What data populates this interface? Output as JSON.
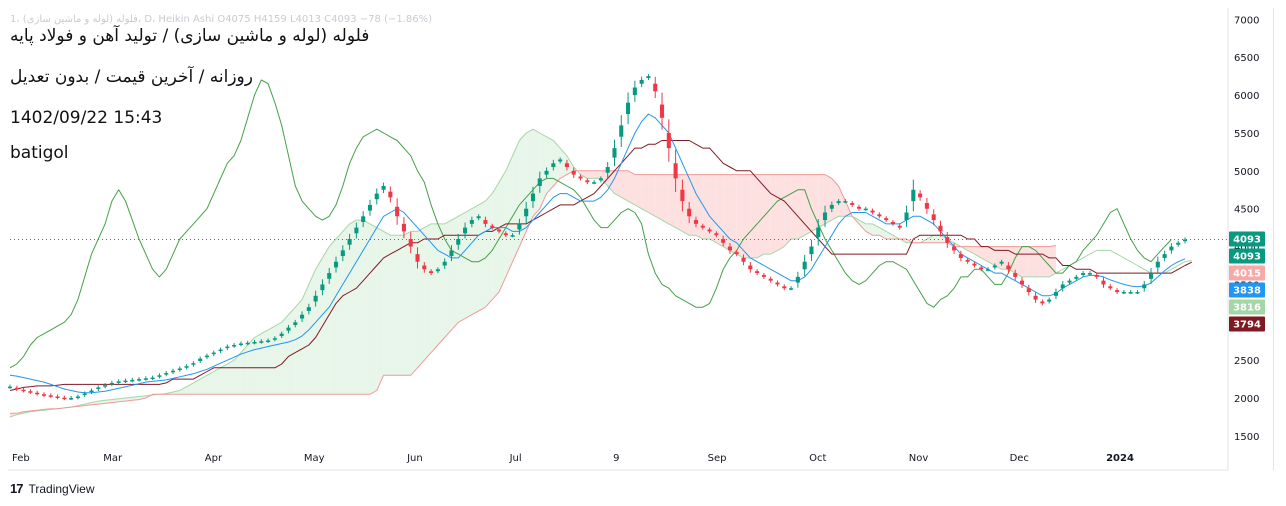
{
  "header": {
    "faint_info": "1، فلوله (لوله و ماشین سازی)، D، Heikin Ashi  O4075  H4159  L4013  C4093  −78 (−1.86%)",
    "symbol_name": "فلوله (لوله و ماشین سازی) / تولید آهن و فولاد پایه",
    "timeframe": "روزانه / آخرین قیمت / بدون تعدیل",
    "datetime": "1402/09/22 15:43",
    "author": "batigol"
  },
  "footer": {
    "logo": "17",
    "brand": "TradingView"
  },
  "chart_data": {
    "type": "candlestick",
    "style": "Heikin Ashi",
    "timeframe": "Daily",
    "y_ticks": [
      1500,
      2000,
      2500,
      3000,
      3500,
      4000,
      4500,
      5000,
      5500,
      6000,
      6500,
      7000
    ],
    "ylim": [
      1050,
      7150
    ],
    "x_labels": [
      "Feb",
      "Mar",
      "Apr",
      "May",
      "Jun",
      "Jul",
      "9",
      "Sep",
      "Oct",
      "Nov",
      "Dec",
      "2024"
    ],
    "last_close": 4093,
    "price_badges": [
      {
        "value": "4093",
        "color": "#089981",
        "meaning": "close"
      },
      {
        "value": "4093",
        "color": "#089981",
        "meaning": "last price"
      },
      {
        "value": "4015",
        "color": "#f7a9a7",
        "meaning": "senkou span B"
      },
      {
        "value": "3838",
        "color": "#2196f3",
        "meaning": "tenkan-sen"
      },
      {
        "value": "3816",
        "color": "#a5d6a7",
        "meaning": "senkou span A"
      },
      {
        "value": "3794",
        "color": "#801922",
        "meaning": "kijun-sen"
      }
    ],
    "colors": {
      "up": "#089981",
      "down": "#f23645",
      "tenkan": "#2196f3",
      "kijun": "#801922",
      "chikou": "#43a047",
      "span_a": "#a5d6a7",
      "span_b": "#ef9a9a",
      "cloud_bull": "#e8f5e9",
      "cloud_bear": "#fde0e0"
    },
    "closes": [
      2150,
      2120,
      2100,
      2080,
      2060,
      2040,
      2030,
      2010,
      2000,
      2000,
      2020,
      2060,
      2100,
      2140,
      2170,
      2200,
      2220,
      2230,
      2240,
      2250,
      2260,
      2270,
      2300,
      2330,
      2360,
      2390,
      2420,
      2460,
      2520,
      2560,
      2600,
      2640,
      2680,
      2700,
      2720,
      2730,
      2740,
      2750,
      2760,
      2790,
      2850,
      2930,
      3000,
      3100,
      3200,
      3350,
      3500,
      3650,
      3800,
      3950,
      4100,
      4250,
      4400,
      4550,
      4700,
      4800,
      4650,
      4400,
      4200,
      4000,
      3800,
      3700,
      3650,
      3700,
      3800,
      3950,
      4100,
      4250,
      4350,
      4400,
      4300,
      4250,
      4200,
      4150,
      4150,
      4300,
      4500,
      4700,
      4900,
      5000,
      5100,
      5150,
      5050,
      4950,
      4900,
      4850,
      4850,
      4900,
      5050,
      5300,
      5600,
      5900,
      6100,
      6200,
      6250,
      6050,
      5700,
      5300,
      4900,
      4600,
      4400,
      4300,
      4250,
      4200,
      4150,
      4050,
      3950,
      3900,
      3800,
      3700,
      3650,
      3600,
      3550,
      3500,
      3450,
      3450,
      3600,
      3800,
      4000,
      4250,
      4450,
      4550,
      4600,
      4600,
      4550,
      4500,
      4500,
      4450,
      4400,
      4350,
      4300,
      4250,
      4450,
      4750,
      4650,
      4500,
      4350,
      4200,
      4050,
      3950,
      3850,
      3800,
      3750,
      3700,
      3700,
      3750,
      3800,
      3700,
      3600,
      3500,
      3400,
      3300,
      3250,
      3300,
      3400,
      3500,
      3550,
      3600,
      3650,
      3650,
      3600,
      3500,
      3450,
      3400,
      3400,
      3400,
      3400,
      3500,
      3650,
      3800,
      3900,
      4000,
      4050,
      4093
    ],
    "tenkan": [
      2300,
      2290,
      2270,
      2250,
      2230,
      2210,
      2180,
      2150,
      2120,
      2100,
      2080,
      2070,
      2070,
      2080,
      2090,
      2110,
      2130,
      2150,
      2170,
      2190,
      2210,
      2220,
      2230,
      2240,
      2260,
      2280,
      2300,
      2320,
      2350,
      2380,
      2420,
      2460,
      2500,
      2540,
      2580,
      2610,
      2640,
      2660,
      2680,
      2700,
      2720,
      2740,
      2770,
      2820,
      2900,
      3000,
      3100,
      3200,
      3350,
      3500,
      3650,
      3800,
      3950,
      4100,
      4250,
      4400,
      4450,
      4500,
      4450,
      4350,
      4250,
      4150,
      4050,
      3950,
      3900,
      3850,
      3850,
      3950,
      4050,
      4150,
      4200,
      4250,
      4250,
      4250,
      4200,
      4200,
      4250,
      4350,
      4450,
      4550,
      4650,
      4700,
      4700,
      4650,
      4600,
      4600,
      4600,
      4650,
      4750,
      4900,
      5100,
      5300,
      5500,
      5650,
      5750,
      5700,
      5600,
      5500,
      5300,
      5100,
      4900,
      4700,
      4550,
      4400,
      4300,
      4200,
      4100,
      4050,
      3950,
      3850,
      3800,
      3750,
      3700,
      3650,
      3600,
      3550,
      3550,
      3600,
      3700,
      3850,
      4000,
      4150,
      4300,
      4400,
      4450,
      4450,
      4450,
      4400,
      4350,
      4300,
      4300,
      4300,
      4350,
      4400,
      4400,
      4350,
      4300,
      4200,
      4100,
      4000,
      3900,
      3850,
      3800,
      3750,
      3700,
      3650,
      3650,
      3600,
      3550,
      3500,
      3450,
      3400,
      3350,
      3350,
      3380,
      3450,
      3500,
      3550,
      3600,
      3620,
      3620,
      3600,
      3560,
      3530,
      3500,
      3480,
      3470,
      3480,
      3520,
      3600,
      3680,
      3750,
      3800,
      3838
    ],
    "kijun": [
      2100,
      2120,
      2140,
      2150,
      2160,
      2160,
      2160,
      2170,
      2180,
      2180,
      2180,
      2180,
      2180,
      2180,
      2180,
      2180,
      2180,
      2180,
      2180,
      2180,
      2180,
      2180,
      2180,
      2200,
      2250,
      2250,
      2250,
      2250,
      2300,
      2350,
      2400,
      2400,
      2400,
      2400,
      2400,
      2400,
      2400,
      2400,
      2400,
      2400,
      2450,
      2550,
      2600,
      2650,
      2700,
      2800,
      2950,
      3100,
      3250,
      3350,
      3400,
      3450,
      3550,
      3650,
      3750,
      3850,
      3900,
      3950,
      4000,
      4050,
      4050,
      4100,
      4100,
      4100,
      4150,
      4150,
      4150,
      4150,
      4150,
      4150,
      4200,
      4200,
      4250,
      4300,
      4300,
      4300,
      4300,
      4350,
      4400,
      4450,
      4500,
      4550,
      4550,
      4550,
      4600,
      4650,
      4700,
      4800,
      4900,
      5000,
      5100,
      5200,
      5300,
      5300,
      5350,
      5350,
      5400,
      5400,
      5400,
      5400,
      5400,
      5350,
      5300,
      5300,
      5200,
      5100,
      5050,
      5000,
      5000,
      5000,
      4900,
      4800,
      4700,
      4650,
      4600,
      4500,
      4400,
      4300,
      4200,
      4100,
      4000,
      3900,
      3900,
      3900,
      3900,
      3900,
      3900,
      3900,
      3900,
      3900,
      3900,
      3900,
      3900,
      4100,
      4150,
      4150,
      4150,
      4150,
      4150,
      4150,
      4150,
      4100,
      4100,
      4000,
      4000,
      3950,
      3950,
      3950,
      3900,
      3900,
      3900,
      3900,
      3900,
      3850,
      3850,
      3750,
      3750,
      3700,
      3700,
      3700,
      3650,
      3650,
      3650,
      3650,
      3650,
      3650,
      3650,
      3650,
      3650,
      3650,
      3650,
      3650,
      3700,
      3750,
      3794
    ],
    "chikou": [
      2400,
      2450,
      2550,
      2700,
      2800,
      2850,
      2900,
      2950,
      3000,
      3100,
      3300,
      3600,
      3900,
      4100,
      4300,
      4600,
      4750,
      4600,
      4350,
      4100,
      3900,
      3700,
      3600,
      3700,
      3900,
      4100,
      4200,
      4300,
      4400,
      4500,
      4700,
      4900,
      5100,
      5200,
      5400,
      5700,
      6000,
      6200,
      6150,
      5900,
      5600,
      5200,
      4800,
      4600,
      4500,
      4400,
      4350,
      4400,
      4550,
      4800,
      5100,
      5300,
      5450,
      5500,
      5550,
      5500,
      5450,
      5400,
      5300,
      5200,
      5000,
      4850,
      4550,
      4300,
      4100,
      3950,
      3900,
      3850,
      3800,
      3800,
      3850,
      3950,
      4100,
      4250,
      4400,
      4550,
      4650,
      4750,
      4850,
      4900,
      4900,
      4850,
      4800,
      4750,
      4650,
      4500,
      4350,
      4250,
      4250,
      4350,
      4450,
      4500,
      4450,
      4300,
      3900,
      3650,
      3500,
      3450,
      3350,
      3300,
      3250,
      3200,
      3200,
      3250,
      3450,
      3700,
      3850,
      3950,
      4100,
      4200,
      4300,
      4400,
      4500,
      4600,
      4650,
      4700,
      4750,
      4750,
      4500,
      4300,
      4100,
      3950,
      3800,
      3650,
      3550,
      3500,
      3550,
      3650,
      3750,
      3800,
      3800,
      3750,
      3700,
      3550,
      3400,
      3250,
      3200,
      3300,
      3350,
      3450,
      3600,
      3600,
      3700,
      3700,
      3600,
      3500,
      3500,
      3650,
      3850,
      4000,
      4000,
      3950,
      3850,
      3750,
      3650,
      3650,
      3750,
      3800,
      3950,
      4050,
      4150,
      4300,
      4450,
      4500,
      4300,
      4100,
      3950,
      3850,
      3800,
      3900,
      4000,
      4093
    ],
    "span_a": [
      1750,
      1780,
      1800,
      1820,
      1830,
      1840,
      1850,
      1860,
      1870,
      1880,
      1900,
      1920,
      1940,
      1960,
      1970,
      1980,
      1990,
      2000,
      2010,
      2020,
      2030,
      2040,
      2050,
      2060,
      2080,
      2100,
      2150,
      2200,
      2250,
      2300,
      2350,
      2400,
      2450,
      2500,
      2600,
      2700,
      2800,
      2850,
      2900,
      2950,
      3000,
      3100,
      3200,
      3300,
      3500,
      3700,
      3850,
      4000,
      4100,
      4200,
      4300,
      4350,
      4350,
      4300,
      4250,
      4200,
      4150,
      4150,
      4150,
      4200,
      4200,
      4250,
      4300,
      4300,
      4300,
      4350,
      4400,
      4450,
      4500,
      4550,
      4600,
      4700,
      4850,
      5000,
      5200,
      5400,
      5500,
      5550,
      5500,
      5450,
      5400,
      5300,
      5200,
      5050,
      4950,
      4900,
      4900,
      4900,
      4800,
      4700,
      4650,
      4600,
      4550,
      4500,
      4450,
      4400,
      4350,
      4300,
      4250,
      4200,
      4150,
      4150,
      4100,
      4100,
      4050,
      4000,
      3950,
      3900,
      3850,
      3850,
      3850,
      3900,
      3900,
      3950,
      4000,
      4100,
      4100,
      4150,
      4200,
      4250,
      4300,
      4350,
      4400,
      4400,
      4400,
      4350,
      4300,
      4300,
      4250,
      4200,
      4150,
      4100,
      4050,
      4050,
      4050,
      4100,
      4150,
      4150,
      4100,
      4050,
      4000,
      3950,
      3900,
      3850,
      3800,
      3750,
      3700,
      3700,
      3650,
      3600,
      3600,
      3600,
      3600,
      3600,
      3650,
      3700,
      3750,
      3800,
      3850,
      3900,
      3950,
      3950,
      3950,
      3900,
      3850,
      3800,
      3750,
      3700,
      3650,
      3650,
      3650,
      3700,
      3750,
      3800,
      3816
    ],
    "span_b": [
      1800,
      1800,
      1820,
      1830,
      1840,
      1850,
      1860,
      1860,
      1870,
      1880,
      1890,
      1900,
      1910,
      1920,
      1930,
      1940,
      1950,
      1960,
      1970,
      1980,
      2000,
      2050,
      2050,
      2050,
      2050,
      2050,
      2050,
      2050,
      2050,
      2050,
      2050,
      2050,
      2050,
      2050,
      2050,
      2050,
      2050,
      2050,
      2050,
      2050,
      2050,
      2050,
      2050,
      2050,
      2050,
      2050,
      2050,
      2050,
      2050,
      2050,
      2050,
      2050,
      2050,
      2050,
      2100,
      2300,
      2300,
      2300,
      2300,
      2300,
      2400,
      2500,
      2600,
      2700,
      2800,
      2900,
      3000,
      3050,
      3100,
      3150,
      3200,
      3300,
      3400,
      3600,
      3800,
      4000,
      4200,
      4400,
      4500,
      4700,
      4800,
      4900,
      4950,
      5000,
      5000,
      5000,
      5000,
      5000,
      5000,
      5000,
      5000,
      5000,
      4950,
      4950,
      4950,
      4950,
      4950,
      4950,
      4950,
      4950,
      4950,
      4950,
      4950,
      4950,
      4950,
      4950,
      4950,
      4950,
      4950,
      4950,
      4950,
      4950,
      4950,
      4950,
      4950,
      4950,
      4950,
      4950,
      4950,
      4950,
      4950,
      4900,
      4800,
      4600,
      4400,
      4300,
      4200,
      4150,
      4150,
      4100,
      4100,
      4100,
      4100,
      4050,
      4050,
      4050,
      4050,
      4050,
      4050,
      4000,
      4000,
      4000,
      4000,
      4000,
      4000,
      4000,
      4000,
      4000,
      4000,
      4000,
      4000,
      4000,
      4000,
      4000,
      4015
    ]
  }
}
